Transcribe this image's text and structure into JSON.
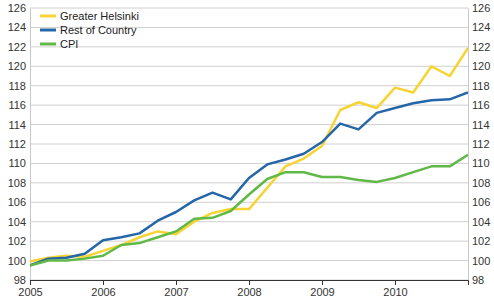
{
  "chart_data": {
    "type": "line",
    "categories": [
      "2005",
      null,
      null,
      null,
      "2006",
      null,
      null,
      null,
      "2007",
      null,
      null,
      null,
      "2008",
      null,
      null,
      null,
      "2009",
      null,
      null,
      null,
      "2010",
      null,
      null,
      null,
      null
    ],
    "series": [
      {
        "name": "Greater Helsinki",
        "color": "#f7d334",
        "values": [
          99.9,
          100.3,
          100.5,
          100.4,
          101.0,
          101.6,
          102.4,
          103.0,
          102.7,
          104.0,
          104.9,
          105.3,
          105.3,
          107.5,
          109.7,
          110.5,
          111.8,
          115.5,
          116.3,
          115.7,
          117.8,
          117.3,
          120.0,
          119.0,
          121.9
        ]
      },
      {
        "name": "Rest of Country",
        "color": "#2566a8",
        "values": [
          99.5,
          100.2,
          100.3,
          100.7,
          102.1,
          102.4,
          102.8,
          104.1,
          105.0,
          106.2,
          107.0,
          106.3,
          108.5,
          109.9,
          110.4,
          111.0,
          112.2,
          114.1,
          113.5,
          115.2,
          115.7,
          116.2,
          116.5,
          116.6,
          117.3
        ]
      },
      {
        "name": "CPI",
        "color": "#60b847",
        "values": [
          99.5,
          100.0,
          100.0,
          100.2,
          100.5,
          101.6,
          101.8,
          102.4,
          103.0,
          104.3,
          104.4,
          105.1,
          106.8,
          108.4,
          109.1,
          109.1,
          108.6,
          108.6,
          108.3,
          108.1,
          108.5,
          109.1,
          109.7,
          109.7,
          110.9
        ]
      }
    ],
    "ylim": [
      98,
      126
    ],
    "yticks": [
      98,
      100,
      102,
      104,
      106,
      108,
      110,
      112,
      114,
      116,
      118,
      120,
      122,
      124,
      126
    ],
    "grid": true,
    "legend": "top-left"
  }
}
